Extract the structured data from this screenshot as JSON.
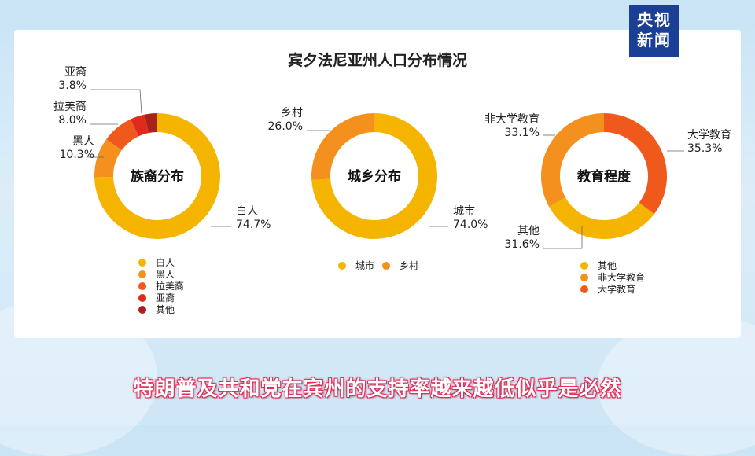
{
  "logo": {
    "line1": "央视",
    "line2": "新闻"
  },
  "title": "宾夕法尼亚州人口分布情况",
  "subtitle": "特朗普及共和党在宾州的支持率越来越低似乎是必然",
  "chart_data": [
    {
      "type": "pie",
      "title": "族裔分布",
      "slices": [
        {
          "name": "白人",
          "value": 74.7,
          "label": "74.7%",
          "color": "#f4b400"
        },
        {
          "name": "黑人",
          "value": 10.3,
          "label": "10.3%",
          "color": "#f4901e"
        },
        {
          "name": "拉美裔",
          "value": 8.0,
          "label": "8.0%",
          "color": "#ef5a1c"
        },
        {
          "name": "亚裔",
          "value": 3.8,
          "label": "3.8%",
          "color": "#e02a1e"
        },
        {
          "name": "其他",
          "value": 3.2,
          "label": "",
          "color": "#a8221a"
        }
      ],
      "legend": [
        "白人",
        "黑人",
        "拉美裔",
        "亚裔",
        "其他"
      ]
    },
    {
      "type": "pie",
      "title": "城乡分布",
      "slices": [
        {
          "name": "城市",
          "value": 74.0,
          "label": "74.0%",
          "color": "#f4b400"
        },
        {
          "name": "乡村",
          "value": 26.0,
          "label": "26.0%",
          "color": "#f4901e"
        }
      ],
      "legend": [
        "城市",
        "乡村"
      ]
    },
    {
      "type": "pie",
      "title": "教育程度",
      "slices": [
        {
          "name": "大学教育",
          "value": 35.3,
          "label": "35.3%",
          "color": "#ef5a1c"
        },
        {
          "name": "其他",
          "value": 31.6,
          "label": "31.6%",
          "color": "#f4b400"
        },
        {
          "name": "非大学教育",
          "value": 33.1,
          "label": "33.1%",
          "color": "#f4901e"
        }
      ],
      "legend": [
        "其他",
        "非大学教育",
        "大学教育"
      ]
    }
  ]
}
